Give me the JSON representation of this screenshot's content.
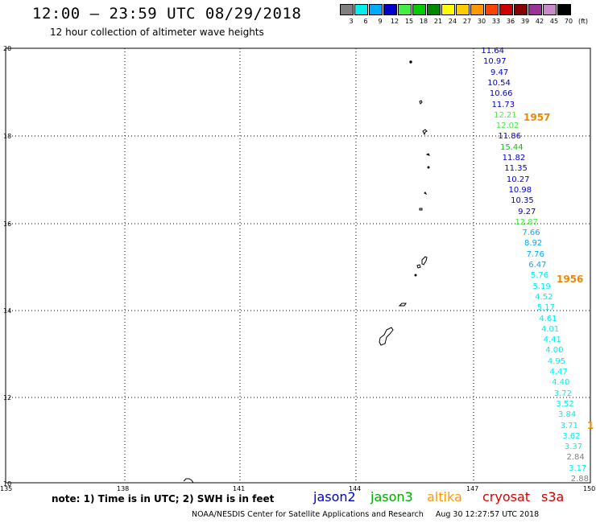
{
  "header": {
    "title": "12:00 – 23:59 UTC 08/29/2018",
    "subtitle": "12 hour collection of altimeter wave heights"
  },
  "color_scale": {
    "unit_label": "(ft)",
    "bins": [
      {
        "label": "3",
        "color": "#808080"
      },
      {
        "label": "6",
        "color": "#00eeee"
      },
      {
        "label": "9",
        "color": "#00aaff"
      },
      {
        "label": "12",
        "color": "#0000cc"
      },
      {
        "label": "15",
        "color": "#44ee44"
      },
      {
        "label": "18",
        "color": "#00cc00"
      },
      {
        "label": "21",
        "color": "#008800"
      },
      {
        "label": "24",
        "color": "#ffff00"
      },
      {
        "label": "27",
        "color": "#ffcc00"
      },
      {
        "label": "30",
        "color": "#ff9900"
      },
      {
        "label": "33",
        "color": "#ff4400"
      },
      {
        "label": "36",
        "color": "#cc0000"
      },
      {
        "label": "39",
        "color": "#880000"
      },
      {
        "label": "42",
        "color": "#993399"
      },
      {
        "label": "45",
        "color": "#cc88cc"
      },
      {
        "label": "70",
        "color": "#000000"
      }
    ]
  },
  "axes": {
    "lat_labels": [
      "20",
      "18",
      "16",
      "14",
      "12",
      "10"
    ],
    "lon_labels": [
      "135",
      "138",
      "141",
      "144",
      "147",
      "150"
    ]
  },
  "wave_heights": [
    {
      "value": "11.64",
      "color": "#0000cc"
    },
    {
      "value": "10.97",
      "color": "#0000cc"
    },
    {
      "value": "9.47",
      "color": "#0000cc"
    },
    {
      "value": "10.54",
      "color": "#0000cc"
    },
    {
      "value": "10.66",
      "color": "#0000cc"
    },
    {
      "value": "11.73",
      "color": "#0000cc"
    },
    {
      "value": "12.21",
      "color": "#44ee44"
    },
    {
      "value": "12.02",
      "color": "#44ee44"
    },
    {
      "value": "11.86",
      "color": "#0000cc"
    },
    {
      "value": "15.44",
      "color": "#00cc00"
    },
    {
      "value": "11.82",
      "color": "#0000cc"
    },
    {
      "value": "11.35",
      "color": "#0000cc"
    },
    {
      "value": "10.27",
      "color": "#0000cc"
    },
    {
      "value": "10.98",
      "color": "#0000cc"
    },
    {
      "value": "10.35",
      "color": "#0000cc"
    },
    {
      "value": "9.27",
      "color": "#0000cc"
    },
    {
      "value": "12.87",
      "color": "#44ee44"
    },
    {
      "value": "7.66",
      "color": "#00aaff"
    },
    {
      "value": "8.92",
      "color": "#00aaff"
    },
    {
      "value": "7.76",
      "color": "#00aaff"
    },
    {
      "value": "6.47",
      "color": "#00aaff"
    },
    {
      "value": "5.76",
      "color": "#00eeee"
    },
    {
      "value": "5.19",
      "color": "#00eeee"
    },
    {
      "value": "4.52",
      "color": "#00eeee"
    },
    {
      "value": "5.17",
      "color": "#00eeee"
    },
    {
      "value": "4.61",
      "color": "#00eeee"
    },
    {
      "value": "4.01",
      "color": "#00eeee"
    },
    {
      "value": "4.41",
      "color": "#00eeee"
    },
    {
      "value": "4.00",
      "color": "#00eeee"
    },
    {
      "value": "4.95",
      "color": "#00eeee"
    },
    {
      "value": "4.47",
      "color": "#00eeee"
    },
    {
      "value": "4.40",
      "color": "#00eeee"
    },
    {
      "value": "3.72",
      "color": "#00eeee"
    },
    {
      "value": "3.52",
      "color": "#00eeee"
    },
    {
      "value": "3.84",
      "color": "#00eeee"
    },
    {
      "value": "3.71",
      "color": "#00eeee"
    },
    {
      "value": "3.62",
      "color": "#00eeee"
    },
    {
      "value": "3.37",
      "color": "#00eeee"
    },
    {
      "value": "2.84",
      "color": "#808080"
    },
    {
      "value": "3.17",
      "color": "#00eeee"
    },
    {
      "value": "2.88",
      "color": "#808080"
    }
  ],
  "orbit_labels": [
    "1957",
    "1956",
    "1"
  ],
  "note": "note: 1) Time is in UTC; 2) SWH is in feet",
  "satellites": [
    {
      "name": "jason2",
      "color": "#0000cc"
    },
    {
      "name": "jason3",
      "color": "#00aa00"
    },
    {
      "name": "altika",
      "color": "#ff9900"
    },
    {
      "name": "cryosat",
      "color": "#dd0000"
    },
    {
      "name": "s3a",
      "color": "#cc0000"
    }
  ],
  "footer": {
    "credit": "NOAA/NESDIS Center for Satellite Applications and Research",
    "timestamp": "Aug 30 12:27:57 UTC 2018"
  }
}
